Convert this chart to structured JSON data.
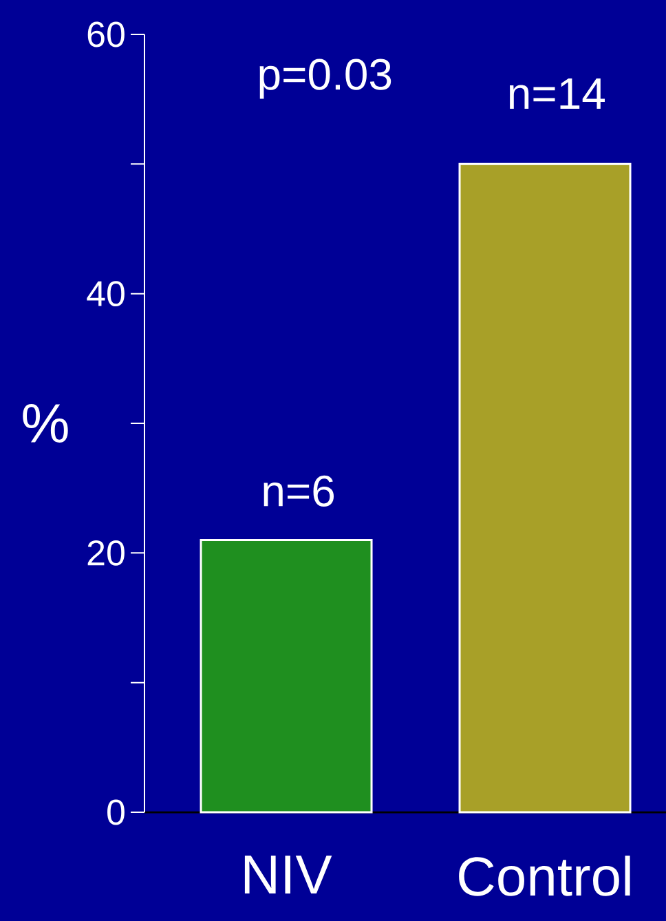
{
  "chart_data": {
    "type": "bar",
    "ylabel": "%",
    "categories": [
      "NIV",
      "Control"
    ],
    "values": [
      21,
      50
    ],
    "colors": [
      "#1f8f1f",
      "#a8a028"
    ],
    "ylim": [
      0,
      60
    ],
    "yticks": [
      0,
      {
        "value": 10,
        "label": null
      },
      20,
      {
        "value": 30,
        "label": null
      },
      40,
      {
        "value": 50,
        "label": null
      },
      60
    ],
    "annotations": [
      "p=0.03",
      "n=6",
      "n=14"
    ]
  }
}
